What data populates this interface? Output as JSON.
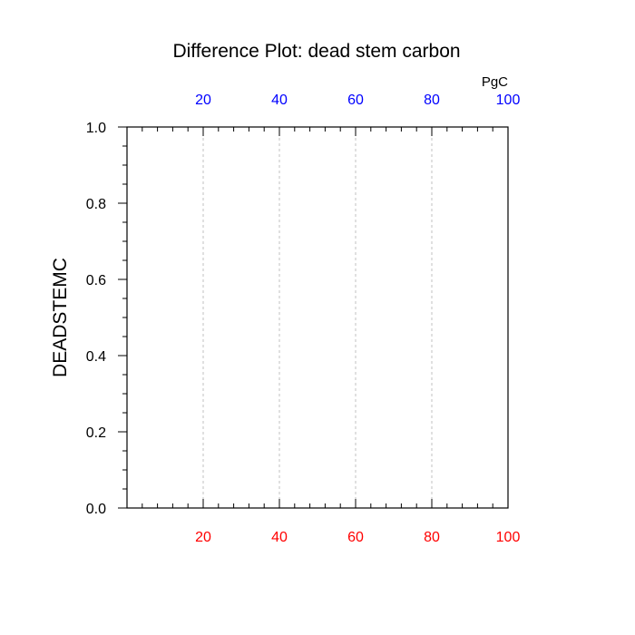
{
  "chart_data": {
    "type": "line",
    "title": "Difference Plot: dead stem carbon",
    "ylabel": "DEADSTEMC",
    "top_axis_unit": "PgC",
    "xlim": [
      0,
      100
    ],
    "ylim": [
      0.0,
      1.0
    ],
    "x_ticks": [
      "20",
      "40",
      "60",
      "80",
      "100"
    ],
    "y_ticks": [
      "0.0",
      "0.2",
      "0.4",
      "0.6",
      "0.8",
      "1.0"
    ],
    "grid": "vertical dashed",
    "series": [],
    "colors": {
      "bottom_axis_labels": "#ff0000",
      "top_axis_labels": "#0000ff",
      "grid": "#c0c0c0",
      "frame": "#000000"
    }
  }
}
